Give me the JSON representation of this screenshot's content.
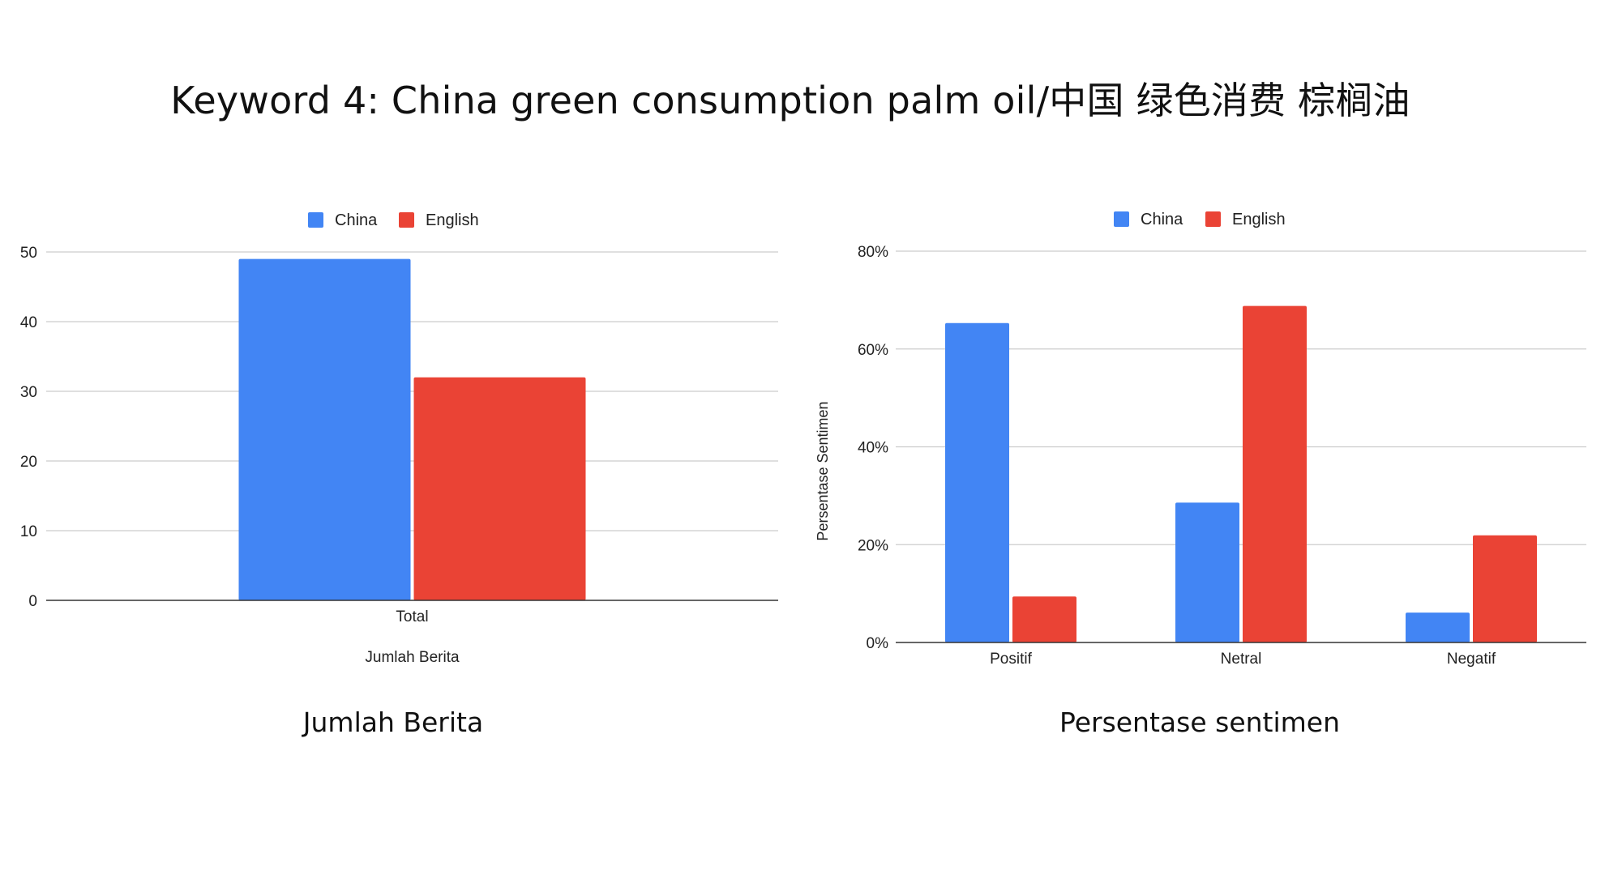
{
  "page": {
    "title": "Keyword 4: China green consumption palm oil/中国 绿色消费 棕榈油",
    "caption_left": "Jumlah Berita",
    "caption_right": "Persentase sentimen"
  },
  "colors": {
    "china": "#4285F4",
    "english": "#EA4335",
    "grid": "#cccccc",
    "axis": "#333333"
  },
  "chart_data": [
    {
      "type": "bar",
      "title": "",
      "categories": [
        "Total"
      ],
      "series": [
        {
          "name": "China",
          "values": [
            49
          ]
        },
        {
          "name": "English",
          "values": [
            32
          ]
        }
      ],
      "xlabel": "Jumlah Berita",
      "ylabel": "",
      "ylim": [
        0,
        50
      ],
      "yticks": [
        0,
        10,
        20,
        30,
        40,
        50
      ],
      "ytick_labels": [
        "0",
        "10",
        "20",
        "30",
        "40",
        "50"
      ],
      "grid": true,
      "legend": "top"
    },
    {
      "type": "bar",
      "title": "",
      "categories": [
        "Positif",
        "Netral",
        "Negatif"
      ],
      "series": [
        {
          "name": "China",
          "values": [
            65.3,
            28.6,
            6.1
          ]
        },
        {
          "name": "English",
          "values": [
            9.4,
            68.8,
            21.9
          ]
        }
      ],
      "xlabel": "",
      "ylabel": "Persentase Sentimen",
      "ylim": [
        0,
        80
      ],
      "yticks": [
        0,
        20,
        40,
        60,
        80
      ],
      "ytick_labels": [
        "0%",
        "20%",
        "40%",
        "60%",
        "80%"
      ],
      "grid": true,
      "legend": "top"
    }
  ]
}
